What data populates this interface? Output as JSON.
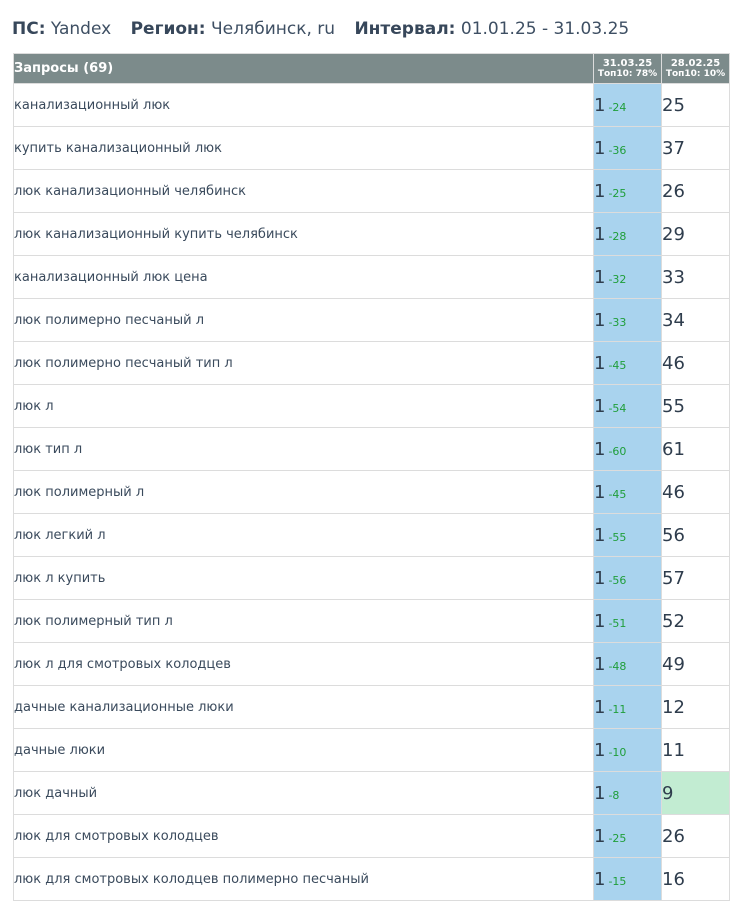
{
  "header": {
    "ps_label": "ПС:",
    "ps_value": "Yandex",
    "region_label": "Регион:",
    "region_value": "Челябинск, ru",
    "interval_label": "Интервал:",
    "interval_value": "01.01.25 - 31.03.25"
  },
  "table": {
    "query_header": "Запросы (69)",
    "columns": [
      {
        "date": "31.03.25",
        "top": "Топ10: 78%"
      },
      {
        "date": "28.02.25",
        "top": "Топ10: 10%"
      }
    ],
    "rows": [
      {
        "query": "канализационный люк",
        "pos": "1",
        "delta": "-24",
        "prev": "25",
        "prev_top10": false
      },
      {
        "query": "купить канализационный люк",
        "pos": "1",
        "delta": "-36",
        "prev": "37",
        "prev_top10": false
      },
      {
        "query": "люк канализационный челябинск",
        "pos": "1",
        "delta": "-25",
        "prev": "26",
        "prev_top10": false
      },
      {
        "query": "люк канализационный купить челябинск",
        "pos": "1",
        "delta": "-28",
        "prev": "29",
        "prev_top10": false
      },
      {
        "query": "канализационный люк цена",
        "pos": "1",
        "delta": "-32",
        "prev": "33",
        "prev_top10": false
      },
      {
        "query": "люк полимерно песчаный л",
        "pos": "1",
        "delta": "-33",
        "prev": "34",
        "prev_top10": false
      },
      {
        "query": "люк полимерно песчаный тип л",
        "pos": "1",
        "delta": "-45",
        "prev": "46",
        "prev_top10": false
      },
      {
        "query": "люк л",
        "pos": "1",
        "delta": "-54",
        "prev": "55",
        "prev_top10": false
      },
      {
        "query": "люк тип л",
        "pos": "1",
        "delta": "-60",
        "prev": "61",
        "prev_top10": false
      },
      {
        "query": "люк полимерный л",
        "pos": "1",
        "delta": "-45",
        "prev": "46",
        "prev_top10": false
      },
      {
        "query": "люк легкий л",
        "pos": "1",
        "delta": "-55",
        "prev": "56",
        "prev_top10": false
      },
      {
        "query": "люк л купить",
        "pos": "1",
        "delta": "-56",
        "prev": "57",
        "prev_top10": false
      },
      {
        "query": "люк полимерный тип л",
        "pos": "1",
        "delta": "-51",
        "prev": "52",
        "prev_top10": false
      },
      {
        "query": "люк л для смотровых колодцев",
        "pos": "1",
        "delta": "-48",
        "prev": "49",
        "prev_top10": false
      },
      {
        "query": "дачные канализационные люки",
        "pos": "1",
        "delta": "-11",
        "prev": "12",
        "prev_top10": false
      },
      {
        "query": "дачные люки",
        "pos": "1",
        "delta": "-10",
        "prev": "11",
        "prev_top10": false
      },
      {
        "query": "люк дачный",
        "pos": "1",
        "delta": "-8",
        "prev": "9",
        "prev_top10": true
      },
      {
        "query": "люк для смотровых колодцев",
        "pos": "1",
        "delta": "-25",
        "prev": "26",
        "prev_top10": false
      },
      {
        "query": "люк для смотровых колодцев полимерно песчаный",
        "pos": "1",
        "delta": "-15",
        "prev": "16",
        "prev_top10": false
      }
    ]
  },
  "colors": {
    "header_bg": "#7c8b8b",
    "current_col_bg": "#a9d3ee",
    "top10_bg": "#c2ecd2",
    "delta_green": "#1f9e3a"
  }
}
